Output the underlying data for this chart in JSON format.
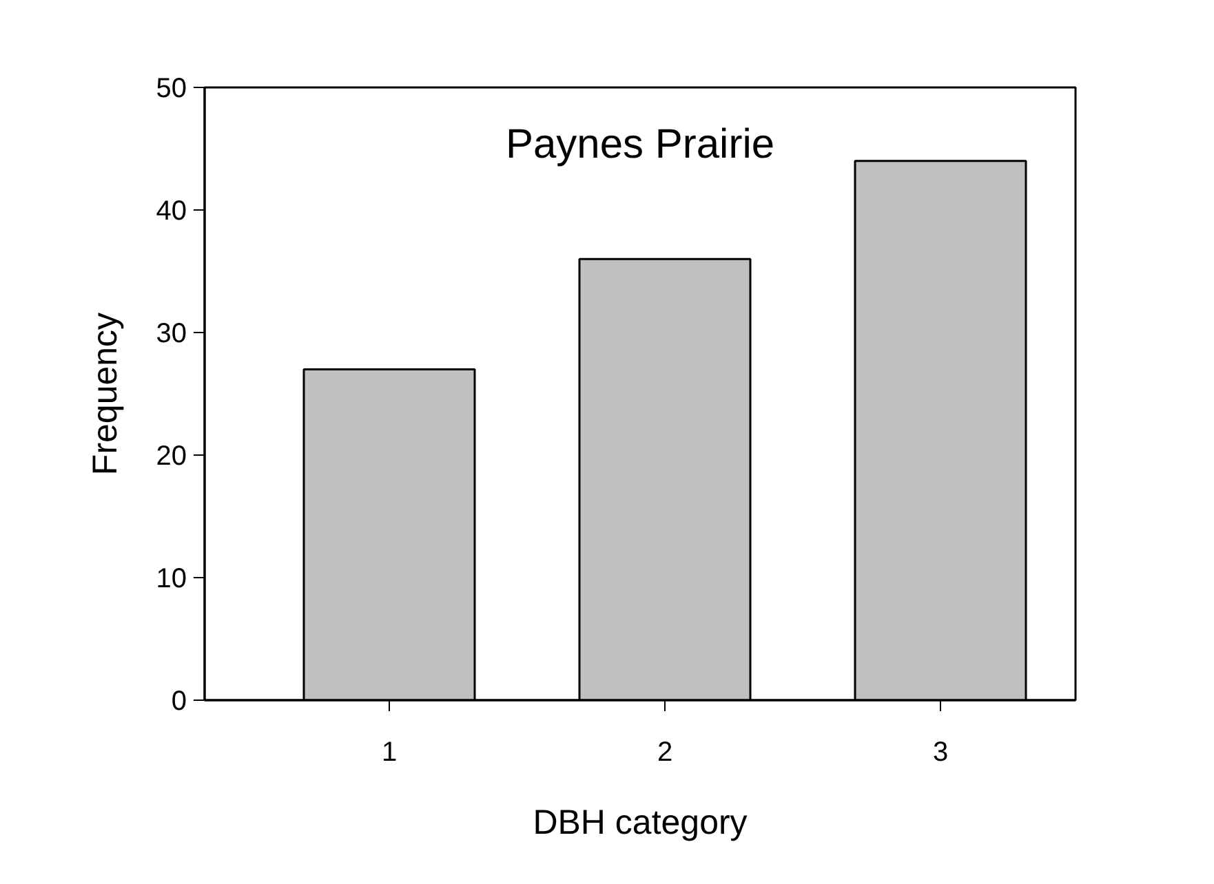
{
  "chart_data": {
    "type": "bar",
    "title": "Paynes Prairie",
    "xlabel": "DBH category",
    "ylabel": "Frequency",
    "categories": [
      "1",
      "2",
      "3"
    ],
    "values": [
      27,
      36,
      44
    ],
    "color": "#c0c0c0",
    "ylim": [
      0,
      50
    ],
    "yticks": [
      0,
      10,
      20,
      30,
      40,
      50
    ],
    "grid": false
  }
}
